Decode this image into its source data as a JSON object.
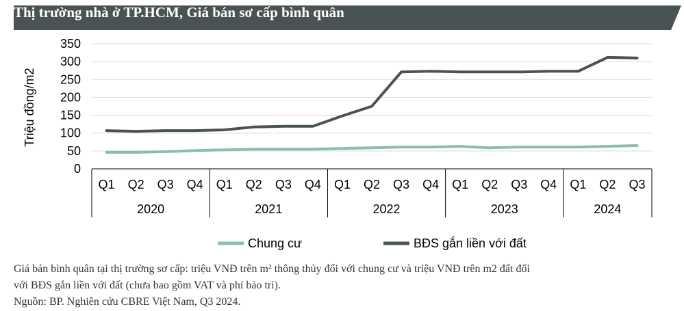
{
  "title": "Thị trường nhà ở TP.HCM, Giá bán sơ cấp bình quân",
  "colors": {
    "title_bg": "#4a5354",
    "chung_cu": "#86bfae",
    "bds": "#4a5354",
    "grid": "#d9d9d9"
  },
  "chart_data": {
    "type": "line",
    "ylabel": "Triệu đồng/m2",
    "ylim": [
      0,
      350
    ],
    "yticks": [
      0,
      50,
      100,
      150,
      200,
      250,
      300,
      350
    ],
    "grid": true,
    "legend_position": "bottom",
    "quarters": [
      "Q1",
      "Q2",
      "Q3",
      "Q4",
      "Q1",
      "Q2",
      "Q3",
      "Q4",
      "Q1",
      "Q2",
      "Q3",
      "Q4",
      "Q1",
      "Q2",
      "Q3",
      "Q4",
      "Q1",
      "Q2",
      "Q3"
    ],
    "years": [
      {
        "label": "2020",
        "span": 4
      },
      {
        "label": "2021",
        "span": 4
      },
      {
        "label": "2022",
        "span": 4
      },
      {
        "label": "2023",
        "span": 4
      },
      {
        "label": "2024",
        "span": 3
      }
    ],
    "series": [
      {
        "name": "Chung cư",
        "color": "#86bfae",
        "values": [
          46,
          46,
          48,
          51,
          53,
          55,
          55,
          55,
          57,
          59,
          61,
          61,
          63,
          59,
          61,
          61,
          61,
          63,
          65
        ]
      },
      {
        "name": "BĐS gắn liền với đất",
        "color": "#4a5354",
        "values": [
          107,
          105,
          107,
          107,
          109,
          117,
          119,
          119,
          148,
          175,
          271,
          273,
          271,
          271,
          271,
          273,
          273,
          312,
          310
        ]
      }
    ]
  },
  "notes": {
    "line1": "Giá bán bình quân tại thị trường sơ cấp: triệu VNĐ trên m² thông thủy đối với chung cư và triệu VNĐ trên m2 đất đối",
    "line2": "với BĐS gắn liền với đất (chưa bao gồm VAT và phí bảo trì).",
    "line3": "Nguồn: BP. Nghiên cứu CBRE Việt Nam, Q3 2024."
  }
}
